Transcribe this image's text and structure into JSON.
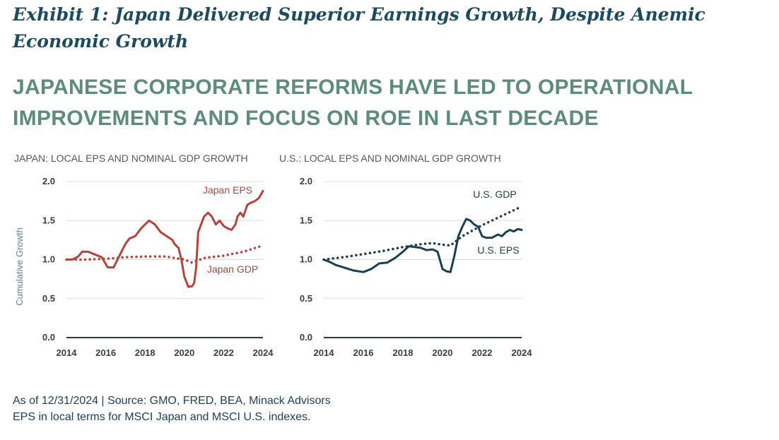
{
  "header": {
    "exhibit_title": "Exhibit 1: Japan Delivered Superior Earnings Growth, Despite Anemic Economic Growth",
    "subtitle": "JAPANESE CORPORATE REFORMS HAVE LED TO OPERATIONAL IMPROVEMENTS AND FOCUS ON ROE IN LAST DECADE"
  },
  "footer": {
    "source_line": "As of 12/31/2024 | Source: GMO, FRED, BEA, Minack Advisors",
    "note_line": "EPS in local terms for MSCI Japan and MSCI U.S. indexes."
  },
  "colors": {
    "japan": "#b5443f",
    "us": "#1c3f4f",
    "grid": "#dcdcdc",
    "axis": "#2a3a44"
  },
  "chart_data": [
    {
      "type": "line",
      "title": "JAPAN: LOCAL EPS AND NOMINAL GDP GROWTH",
      "ylabel": "Cumulative Growth",
      "xlabel": "",
      "xlim": [
        2014,
        2024
      ],
      "ylim": [
        0,
        2
      ],
      "xticks": [
        "2014",
        "2016",
        "2018",
        "2020",
        "2022",
        "2024"
      ],
      "yticks": [
        "0.0",
        "0.5",
        "1.0",
        "1.5",
        "2.0"
      ],
      "grid": true,
      "series": [
        {
          "name": "Japan EPS",
          "style": "solid",
          "x": [
            2014,
            2014.3,
            2014.6,
            2014.8,
            2015.1,
            2015.4,
            2015.8,
            2016.1,
            2016.4,
            2016.6,
            2016.8,
            2017.0,
            2017.2,
            2017.5,
            2017.8,
            2018.0,
            2018.2,
            2018.5,
            2018.8,
            2019.1,
            2019.4,
            2019.5,
            2019.7,
            2019.85,
            2020.0,
            2020.2,
            2020.4,
            2020.5,
            2020.6,
            2020.7,
            2020.85,
            2021.0,
            2021.2,
            2021.4,
            2021.6,
            2021.8,
            2022.0,
            2022.2,
            2022.4,
            2022.6,
            2022.7,
            2022.85,
            2023.0,
            2023.2,
            2023.4,
            2023.6,
            2023.8,
            2024.0
          ],
          "y": [
            1.0,
            1.0,
            1.04,
            1.1,
            1.1,
            1.07,
            1.03,
            0.9,
            0.9,
            1.0,
            1.1,
            1.2,
            1.27,
            1.3,
            1.4,
            1.45,
            1.5,
            1.45,
            1.35,
            1.3,
            1.25,
            1.2,
            1.15,
            1.0,
            0.78,
            0.65,
            0.66,
            0.7,
            0.9,
            1.35,
            1.45,
            1.55,
            1.6,
            1.55,
            1.45,
            1.5,
            1.43,
            1.4,
            1.38,
            1.45,
            1.55,
            1.6,
            1.55,
            1.7,
            1.73,
            1.75,
            1.79,
            1.88
          ]
        },
        {
          "name": "Japan GDP",
          "style": "dotted",
          "x": [
            2014,
            2015,
            2016,
            2017,
            2018,
            2019,
            2019.5,
            2020,
            2020.4,
            2021,
            2022,
            2023,
            2024
          ],
          "y": [
            1.0,
            1.0,
            1.01,
            1.03,
            1.04,
            1.04,
            1.02,
            1.0,
            0.96,
            1.02,
            1.05,
            1.1,
            1.18
          ]
        }
      ]
    },
    {
      "type": "line",
      "title": "U.S.: LOCAL EPS AND NOMINAL GDP GROWTH",
      "ylabel": "",
      "xlabel": "",
      "xlim": [
        2014,
        2024
      ],
      "ylim": [
        0,
        2
      ],
      "xticks": [
        "2014",
        "2016",
        "2018",
        "2020",
        "2022",
        "2024"
      ],
      "yticks": [
        "0.0",
        "0.5",
        "1.0",
        "1.5",
        "2.0"
      ],
      "grid": true,
      "series": [
        {
          "name": "U.S. GDP",
          "style": "dotted",
          "x": [
            2014,
            2015,
            2016,
            2017,
            2018,
            2019,
            2019.5,
            2020,
            2020.4,
            2021,
            2022,
            2023,
            2024
          ],
          "y": [
            1.0,
            1.03,
            1.07,
            1.11,
            1.16,
            1.2,
            1.21,
            1.19,
            1.18,
            1.3,
            1.44,
            1.56,
            1.68
          ]
        },
        {
          "name": "U.S. EPS",
          "style": "solid",
          "x": [
            2014,
            2014.3,
            2014.6,
            2015.0,
            2015.5,
            2016.0,
            2016.4,
            2016.8,
            2017.2,
            2017.6,
            2018.0,
            2018.3,
            2018.6,
            2018.9,
            2019.2,
            2019.5,
            2019.75,
            2020.0,
            2020.2,
            2020.4,
            2020.6,
            2020.8,
            2021.0,
            2021.2,
            2021.4,
            2021.6,
            2021.8,
            2022.0,
            2022.2,
            2022.5,
            2022.8,
            2023.0,
            2023.2,
            2023.4,
            2023.6,
            2023.8,
            2024.0
          ],
          "y": [
            1.0,
            0.97,
            0.93,
            0.9,
            0.86,
            0.84,
            0.88,
            0.95,
            0.96,
            1.02,
            1.1,
            1.17,
            1.16,
            1.15,
            1.12,
            1.13,
            1.1,
            0.88,
            0.85,
            0.84,
            1.05,
            1.3,
            1.42,
            1.52,
            1.5,
            1.45,
            1.42,
            1.3,
            1.28,
            1.28,
            1.32,
            1.3,
            1.35,
            1.38,
            1.36,
            1.39,
            1.38
          ]
        }
      ]
    }
  ]
}
